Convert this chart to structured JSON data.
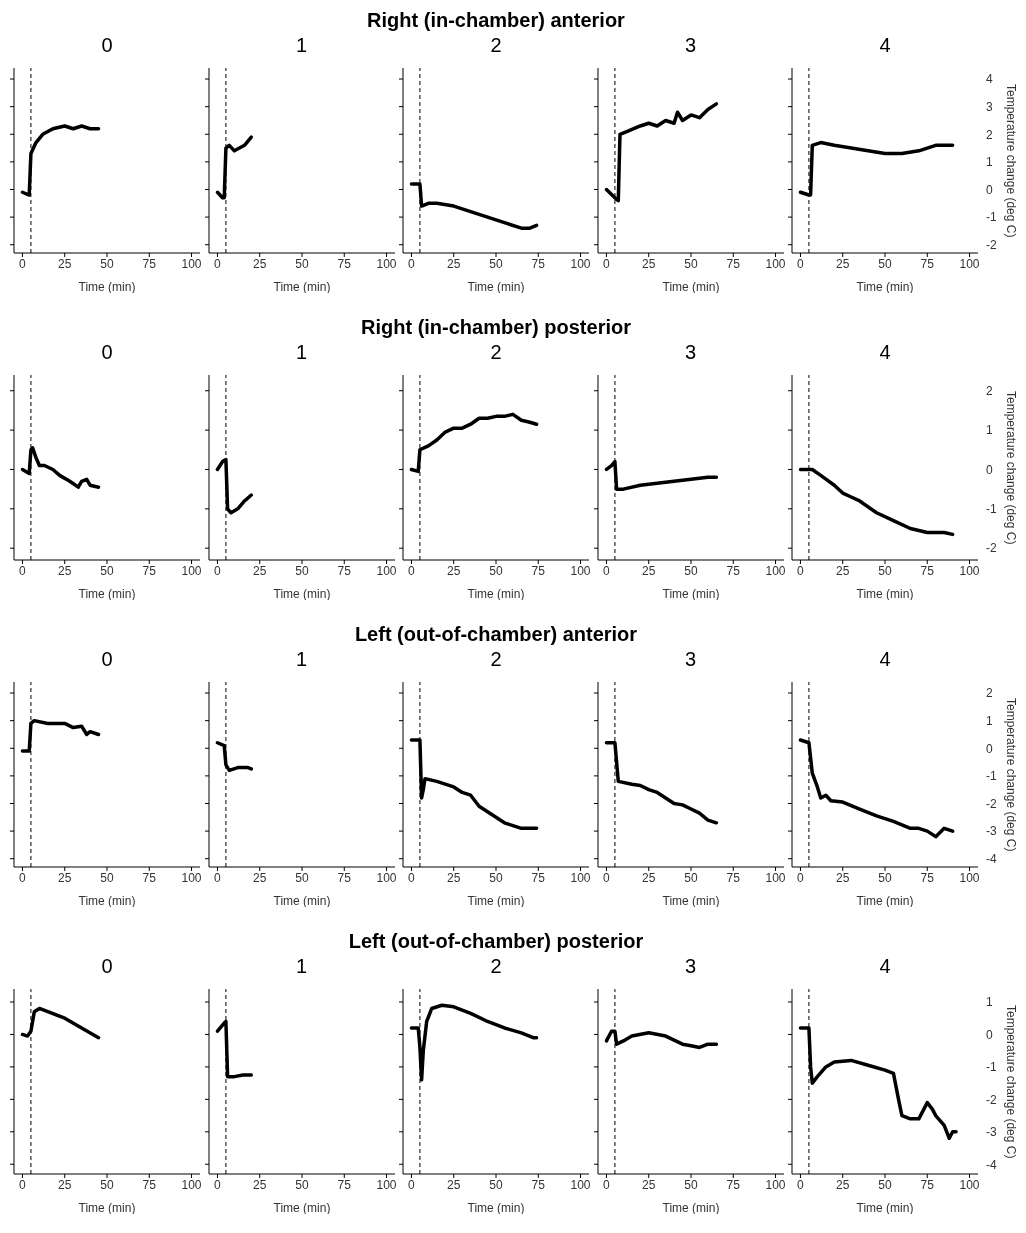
{
  "chart_data": [
    {
      "type": "line",
      "title": "0",
      "xlabel": "Time (min)",
      "xlim": [
        -5,
        105
      ],
      "xticks": [
        0,
        25,
        50,
        75,
        100
      ],
      "ylim": [
        -2.3,
        4.4
      ],
      "yticks": [
        {
          "value": -2,
          "label": null
        },
        {
          "value": -1,
          "label": null
        },
        {
          "value": 0,
          "label": null
        },
        {
          "value": 1,
          "label": null
        },
        {
          "value": 2,
          "label": null
        },
        {
          "value": 3,
          "label": null
        },
        {
          "value": 4,
          "label": null
        }
      ],
      "tick_labels": "x",
      "marker": "none",
      "ref_lines": [
        {
          "axis": "x",
          "value": 5,
          "line_style": "dashed",
          "color": "#000000"
        }
      ],
      "series": [
        {
          "color": "#000000",
          "x": [
            0,
            4,
            5,
            8,
            12,
            18,
            25,
            30,
            35,
            40,
            45
          ],
          "values": [
            -0.1,
            -0.2,
            1.3,
            1.7,
            2.0,
            2.2,
            2.3,
            2.2,
            2.3,
            2.2,
            2.2
          ]
        }
      ]
    },
    {
      "type": "line",
      "title": "1",
      "xlabel": "Time (min)",
      "xlim": [
        -5,
        105
      ],
      "xticks": [
        0,
        25,
        50,
        75,
        100
      ],
      "ylim": [
        -2.3,
        4.4
      ],
      "yticks": [
        {
          "value": -2,
          "label": null
        },
        {
          "value": -1,
          "label": null
        },
        {
          "value": 0,
          "label": null
        },
        {
          "value": 1,
          "label": null
        },
        {
          "value": 2,
          "label": null
        },
        {
          "value": 3,
          "label": null
        },
        {
          "value": 4,
          "label": null
        }
      ],
      "tick_labels": "x",
      "marker": "none",
      "ref_lines": [
        {
          "axis": "x",
          "value": 5,
          "line_style": "dashed",
          "color": "#000000"
        }
      ],
      "series": [
        {
          "color": "#000000",
          "x": [
            0,
            3,
            4,
            5,
            7,
            10,
            13,
            16,
            20
          ],
          "values": [
            -0.1,
            -0.3,
            -0.3,
            1.5,
            1.6,
            1.4,
            1.5,
            1.6,
            1.9
          ]
        }
      ]
    },
    {
      "type": "line",
      "title": "Right (in-chamber) anterior",
      "subtitle": "2",
      "xlabel": "Time (min)",
      "xlim": [
        -5,
        105
      ],
      "xticks": [
        0,
        25,
        50,
        75,
        100
      ],
      "ylim": [
        -2.3,
        4.4
      ],
      "yticks": [
        {
          "value": -2,
          "label": null
        },
        {
          "value": -1,
          "label": null
        },
        {
          "value": 0,
          "label": null
        },
        {
          "value": 1,
          "label": null
        },
        {
          "value": 2,
          "label": null
        },
        {
          "value": 3,
          "label": null
        },
        {
          "value": 4,
          "label": null
        }
      ],
      "tick_labels": "x",
      "marker": "none",
      "ref_lines": [
        {
          "axis": "x",
          "value": 5,
          "line_style": "dashed",
          "color": "#000000"
        }
      ],
      "series": [
        {
          "color": "#000000",
          "x": [
            0,
            5,
            6,
            10,
            15,
            25,
            35,
            45,
            55,
            65,
            70,
            74
          ],
          "values": [
            0.2,
            0.2,
            -0.6,
            -0.5,
            -0.5,
            -0.6,
            -0.8,
            -1.0,
            -1.2,
            -1.4,
            -1.4,
            -1.3
          ]
        }
      ]
    },
    {
      "type": "line",
      "title": "3",
      "xlabel": "Time (min)",
      "xlim": [
        -5,
        105
      ],
      "xticks": [
        0,
        25,
        50,
        75,
        100
      ],
      "ylim": [
        -2.3,
        4.4
      ],
      "yticks": [
        {
          "value": -2,
          "label": null
        },
        {
          "value": -1,
          "label": null
        },
        {
          "value": 0,
          "label": null
        },
        {
          "value": 1,
          "label": null
        },
        {
          "value": 2,
          "label": null
        },
        {
          "value": 3,
          "label": null
        },
        {
          "value": 4,
          "label": null
        }
      ],
      "tick_labels": "x",
      "marker": "none",
      "ref_lines": [
        {
          "axis": "x",
          "value": 5,
          "line_style": "dashed",
          "color": "#000000"
        }
      ],
      "series": [
        {
          "color": "#000000",
          "x": [
            0,
            5,
            7,
            8,
            12,
            20,
            25,
            30,
            35,
            40,
            42,
            45,
            50,
            55,
            60,
            65
          ],
          "values": [
            0,
            -0.3,
            -0.4,
            2.0,
            2.1,
            2.3,
            2.4,
            2.3,
            2.5,
            2.4,
            2.8,
            2.5,
            2.7,
            2.6,
            2.9,
            3.1
          ]
        }
      ]
    },
    {
      "type": "line",
      "title": "4",
      "xlabel": "Time (min)",
      "ylabel": "Temperature change (deg C)",
      "xlim": [
        -5,
        105
      ],
      "xticks": [
        0,
        25,
        50,
        75,
        100
      ],
      "ylim": [
        -2.3,
        4.4
      ],
      "yticks": [
        -2,
        -1,
        0,
        1,
        2,
        3,
        4
      ],
      "marker": "none",
      "ref_lines": [
        {
          "axis": "x",
          "value": 5,
          "line_style": "dashed",
          "color": "#000000"
        }
      ],
      "series": [
        {
          "color": "#000000",
          "x": [
            0,
            5,
            6,
            7,
            12,
            20,
            30,
            40,
            50,
            60,
            70,
            75,
            80,
            90
          ],
          "values": [
            -0.1,
            -0.2,
            -0.2,
            1.6,
            1.7,
            1.6,
            1.5,
            1.4,
            1.3,
            1.3,
            1.4,
            1.5,
            1.6,
            1.6
          ]
        }
      ]
    },
    {
      "type": "line",
      "title": "0",
      "xlabel": "Time (min)",
      "xlim": [
        -5,
        105
      ],
      "xticks": [
        0,
        25,
        50,
        75,
        100
      ],
      "ylim": [
        -2.3,
        2.4
      ],
      "yticks": [
        {
          "value": -2,
          "label": null
        },
        {
          "value": -1,
          "label": null
        },
        {
          "value": 0,
          "label": null
        },
        {
          "value": 1,
          "label": null
        },
        {
          "value": 2,
          "label": null
        }
      ],
      "tick_labels": "x",
      "marker": "none",
      "ref_lines": [
        {
          "axis": "x",
          "value": 5,
          "line_style": "dashed",
          "color": "#000000"
        }
      ],
      "series": [
        {
          "color": "#000000",
          "x": [
            0,
            4,
            5,
            6,
            8,
            10,
            13,
            18,
            22,
            28,
            33,
            35,
            38,
            40,
            45
          ],
          "values": [
            0,
            -0.1,
            0.5,
            0.55,
            0.3,
            0.1,
            0.1,
            0,
            -0.15,
            -0.3,
            -0.45,
            -0.3,
            -0.25,
            -0.4,
            -0.45
          ]
        }
      ]
    },
    {
      "type": "line",
      "title": "1",
      "xlabel": "Time (min)",
      "xlim": [
        -5,
        105
      ],
      "xticks": [
        0,
        25,
        50,
        75,
        100
      ],
      "ylim": [
        -2.3,
        2.4
      ],
      "yticks": [
        {
          "value": -2,
          "label": null
        },
        {
          "value": -1,
          "label": null
        },
        {
          "value": 0,
          "label": null
        },
        {
          "value": 1,
          "label": null
        },
        {
          "value": 2,
          "label": null
        }
      ],
      "tick_labels": "x",
      "marker": "none",
      "ref_lines": [
        {
          "axis": "x",
          "value": 5,
          "line_style": "dashed",
          "color": "#000000"
        }
      ],
      "series": [
        {
          "color": "#000000",
          "x": [
            0,
            3,
            5,
            6,
            8,
            12,
            16,
            20
          ],
          "values": [
            0,
            0.2,
            0.25,
            -1.0,
            -1.1,
            -1.0,
            -0.8,
            -0.65
          ]
        }
      ]
    },
    {
      "type": "line",
      "title": "Right (in-chamber) posterior",
      "subtitle": "2",
      "xlabel": "Time (min)",
      "xlim": [
        -5,
        105
      ],
      "xticks": [
        0,
        25,
        50,
        75,
        100
      ],
      "ylim": [
        -2.3,
        2.4
      ],
      "yticks": [
        {
          "value": -2,
          "label": null
        },
        {
          "value": -1,
          "label": null
        },
        {
          "value": 0,
          "label": null
        },
        {
          "value": 1,
          "label": null
        },
        {
          "value": 2,
          "label": null
        }
      ],
      "tick_labels": "x",
      "marker": "none",
      "ref_lines": [
        {
          "axis": "x",
          "value": 5,
          "line_style": "dashed",
          "color": "#000000"
        }
      ],
      "series": [
        {
          "color": "#000000",
          "x": [
            0,
            4,
            5,
            10,
            15,
            20,
            25,
            30,
            35,
            40,
            45,
            50,
            55,
            60,
            65,
            70,
            74
          ],
          "values": [
            0,
            -0.05,
            0.5,
            0.6,
            0.75,
            0.95,
            1.05,
            1.05,
            1.15,
            1.3,
            1.3,
            1.35,
            1.35,
            1.4,
            1.25,
            1.2,
            1.15
          ]
        }
      ]
    },
    {
      "type": "line",
      "title": "3",
      "xlabel": "Time (min)",
      "xlim": [
        -5,
        105
      ],
      "xticks": [
        0,
        25,
        50,
        75,
        100
      ],
      "ylim": [
        -2.3,
        2.4
      ],
      "yticks": [
        {
          "value": -2,
          "label": null
        },
        {
          "value": -1,
          "label": null
        },
        {
          "value": 0,
          "label": null
        },
        {
          "value": 1,
          "label": null
        },
        {
          "value": 2,
          "label": null
        }
      ],
      "tick_labels": "x",
      "marker": "none",
      "ref_lines": [
        {
          "axis": "x",
          "value": 5,
          "line_style": "dashed",
          "color": "#000000"
        }
      ],
      "series": [
        {
          "color": "#000000",
          "x": [
            0,
            3,
            5,
            6,
            10,
            20,
            30,
            40,
            50,
            60,
            65
          ],
          "values": [
            0,
            0.1,
            0.2,
            -0.5,
            -0.5,
            -0.4,
            -0.35,
            -0.3,
            -0.25,
            -0.2,
            -0.2
          ]
        }
      ]
    },
    {
      "type": "line",
      "title": "4",
      "xlabel": "Time (min)",
      "ylabel": "Temperature change (deg C)",
      "xlim": [
        -5,
        105
      ],
      "xticks": [
        0,
        25,
        50,
        75,
        100
      ],
      "ylim": [
        -2.3,
        2.4
      ],
      "yticks": [
        -2,
        -1,
        0,
        1,
        2
      ],
      "marker": "none",
      "ref_lines": [
        {
          "axis": "x",
          "value": 5,
          "line_style": "dashed",
          "color": "#000000"
        }
      ],
      "series": [
        {
          "color": "#000000",
          "x": [
            0,
            3,
            7,
            12,
            20,
            25,
            30,
            35,
            45,
            55,
            65,
            75,
            85,
            90
          ],
          "values": [
            0,
            0,
            0,
            -0.15,
            -0.4,
            -0.6,
            -0.7,
            -0.8,
            -1.1,
            -1.3,
            -1.5,
            -1.6,
            -1.6,
            -1.65
          ]
        }
      ]
    },
    {
      "type": "line",
      "title": "0",
      "xlabel": "Time (min)",
      "xlim": [
        -5,
        105
      ],
      "xticks": [
        0,
        25,
        50,
        75,
        100
      ],
      "ylim": [
        -4.3,
        2.4
      ],
      "yticks": [
        {
          "value": -4,
          "label": null
        },
        {
          "value": -3,
          "label": null
        },
        {
          "value": -2,
          "label": null
        },
        {
          "value": -1,
          "label": null
        },
        {
          "value": 0,
          "label": null
        },
        {
          "value": 1,
          "label": null
        },
        {
          "value": 2,
          "label": null
        }
      ],
      "tick_labels": "x",
      "marker": "none",
      "ref_lines": [
        {
          "axis": "x",
          "value": 5,
          "line_style": "dashed",
          "color": "#000000"
        }
      ],
      "series": [
        {
          "color": "#000000",
          "x": [
            0,
            4,
            5,
            7,
            15,
            25,
            30,
            35,
            38,
            40,
            45
          ],
          "values": [
            -0.1,
            -0.1,
            0.9,
            1.0,
            0.9,
            0.9,
            0.75,
            0.8,
            0.5,
            0.6,
            0.5
          ]
        }
      ]
    },
    {
      "type": "line",
      "title": "1",
      "xlabel": "Time (min)",
      "xlim": [
        -5,
        105
      ],
      "xticks": [
        0,
        25,
        50,
        75,
        100
      ],
      "ylim": [
        -4.3,
        2.4
      ],
      "yticks": [
        {
          "value": -4,
          "label": null
        },
        {
          "value": -3,
          "label": null
        },
        {
          "value": -2,
          "label": null
        },
        {
          "value": -1,
          "label": null
        },
        {
          "value": 0,
          "label": null
        },
        {
          "value": 1,
          "label": null
        },
        {
          "value": 2,
          "label": null
        }
      ],
      "tick_labels": "x",
      "marker": "none",
      "ref_lines": [
        {
          "axis": "x",
          "value": 5,
          "line_style": "dashed",
          "color": "#000000"
        }
      ],
      "series": [
        {
          "color": "#000000",
          "x": [
            0,
            4,
            5,
            7,
            12,
            18,
            20
          ],
          "values": [
            0.2,
            0.1,
            -0.6,
            -0.8,
            -0.7,
            -0.7,
            -0.75
          ]
        }
      ]
    },
    {
      "type": "line",
      "title": "Left (out-of-chamber) anterior",
      "subtitle": "2",
      "xlabel": "Time (min)",
      "xlim": [
        -5,
        105
      ],
      "xticks": [
        0,
        25,
        50,
        75,
        100
      ],
      "ylim": [
        -4.3,
        2.4
      ],
      "yticks": [
        {
          "value": -4,
          "label": null
        },
        {
          "value": -3,
          "label": null
        },
        {
          "value": -2,
          "label": null
        },
        {
          "value": -1,
          "label": null
        },
        {
          "value": 0,
          "label": null
        },
        {
          "value": 1,
          "label": null
        },
        {
          "value": 2,
          "label": null
        }
      ],
      "tick_labels": "x",
      "marker": "none",
      "ref_lines": [
        {
          "axis": "x",
          "value": 5,
          "line_style": "dashed",
          "color": "#000000"
        }
      ],
      "series": [
        {
          "color": "#000000",
          "x": [
            0,
            5,
            6,
            7,
            8,
            15,
            25,
            30,
            35,
            40,
            50,
            55,
            60,
            65,
            74
          ],
          "values": [
            0.3,
            0.3,
            -1.8,
            -1.5,
            -1.1,
            -1.2,
            -1.4,
            -1.6,
            -1.7,
            -2.1,
            -2.5,
            -2.7,
            -2.8,
            -2.9,
            -2.9
          ]
        }
      ]
    },
    {
      "type": "line",
      "title": "3",
      "xlabel": "Time (min)",
      "xlim": [
        -5,
        105
      ],
      "xticks": [
        0,
        25,
        50,
        75,
        100
      ],
      "ylim": [
        -4.3,
        2.4
      ],
      "yticks": [
        {
          "value": -4,
          "label": null
        },
        {
          "value": -3,
          "label": null
        },
        {
          "value": -2,
          "label": null
        },
        {
          "value": -1,
          "label": null
        },
        {
          "value": 0,
          "label": null
        },
        {
          "value": 1,
          "label": null
        },
        {
          "value": 2,
          "label": null
        }
      ],
      "tick_labels": "x",
      "marker": "none",
      "ref_lines": [
        {
          "axis": "x",
          "value": 5,
          "line_style": "dashed",
          "color": "#000000"
        }
      ],
      "series": [
        {
          "color": "#000000",
          "x": [
            0,
            5,
            7,
            15,
            20,
            25,
            30,
            35,
            40,
            45,
            50,
            55,
            60,
            65
          ],
          "values": [
            0.2,
            0.2,
            -1.2,
            -1.3,
            -1.35,
            -1.5,
            -1.6,
            -1.8,
            -2.0,
            -2.05,
            -2.2,
            -2.35,
            -2.6,
            -2.7
          ]
        }
      ]
    },
    {
      "type": "line",
      "title": "4",
      "xlabel": "Time (min)",
      "ylabel": "Temperature change (deg C)",
      "xlim": [
        -5,
        105
      ],
      "xticks": [
        0,
        25,
        50,
        75,
        100
      ],
      "ylim": [
        -4.3,
        2.4
      ],
      "yticks": [
        -4,
        -3,
        -2,
        -1,
        0,
        1,
        2
      ],
      "marker": "none",
      "ref_lines": [
        {
          "axis": "x",
          "value": 5,
          "line_style": "dashed",
          "color": "#000000"
        }
      ],
      "series": [
        {
          "color": "#000000",
          "x": [
            0,
            5,
            7,
            10,
            12,
            15,
            18,
            25,
            35,
            45,
            55,
            65,
            70,
            75,
            80,
            85,
            90
          ],
          "values": [
            0.3,
            0.2,
            -0.9,
            -1.4,
            -1.8,
            -1.7,
            -1.9,
            -1.95,
            -2.2,
            -2.45,
            -2.65,
            -2.9,
            -2.9,
            -3.0,
            -3.2,
            -2.9,
            -3.0
          ]
        }
      ]
    },
    {
      "type": "line",
      "title": "0",
      "xlabel": "Time (min)",
      "xlim": [
        -5,
        105
      ],
      "xticks": [
        0,
        25,
        50,
        75,
        100
      ],
      "ylim": [
        -4.3,
        1.4
      ],
      "yticks": [
        {
          "value": -4,
          "label": null
        },
        {
          "value": -3,
          "label": null
        },
        {
          "value": -2,
          "label": null
        },
        {
          "value": -1,
          "label": null
        },
        {
          "value": 0,
          "label": null
        },
        {
          "value": 1,
          "label": null
        }
      ],
      "tick_labels": "x",
      "marker": "none",
      "ref_lines": [
        {
          "axis": "x",
          "value": 5,
          "line_style": "dashed",
          "color": "#000000"
        }
      ],
      "series": [
        {
          "color": "#000000",
          "x": [
            0,
            3,
            5,
            7,
            10,
            15,
            25,
            35,
            45
          ],
          "values": [
            0,
            -0.05,
            0.1,
            0.7,
            0.8,
            0.7,
            0.5,
            0.2,
            -0.1
          ]
        }
      ]
    },
    {
      "type": "line",
      "title": "1",
      "xlabel": "Time (min)",
      "xlim": [
        -5,
        105
      ],
      "xticks": [
        0,
        25,
        50,
        75,
        100
      ],
      "ylim": [
        -4.3,
        1.4
      ],
      "yticks": [
        {
          "value": -4,
          "label": null
        },
        {
          "value": -3,
          "label": null
        },
        {
          "value": -2,
          "label": null
        },
        {
          "value": -1,
          "label": null
        },
        {
          "value": 0,
          "label": null
        },
        {
          "value": 1,
          "label": null
        }
      ],
      "tick_labels": "x",
      "marker": "none",
      "ref_lines": [
        {
          "axis": "x",
          "value": 5,
          "line_style": "dashed",
          "color": "#000000"
        }
      ],
      "series": [
        {
          "color": "#000000",
          "x": [
            0,
            4,
            5,
            6,
            10,
            15,
            20
          ],
          "values": [
            0.1,
            0.35,
            0.4,
            -1.3,
            -1.3,
            -1.25,
            -1.25
          ]
        }
      ]
    },
    {
      "type": "line",
      "title": "Left (out-of-chamber) posterior",
      "subtitle": "2",
      "xlabel": "Time (min)",
      "xlim": [
        -5,
        105
      ],
      "xticks": [
        0,
        25,
        50,
        75,
        100
      ],
      "ylim": [
        -4.3,
        1.4
      ],
      "yticks": [
        {
          "value": -4,
          "label": null
        },
        {
          "value": -3,
          "label": null
        },
        {
          "value": -2,
          "label": null
        },
        {
          "value": -1,
          "label": null
        },
        {
          "value": 0,
          "label": null
        },
        {
          "value": 1,
          "label": null
        }
      ],
      "tick_labels": "x",
      "marker": "none",
      "ref_lines": [
        {
          "axis": "x",
          "value": 5,
          "line_style": "dashed",
          "color": "#000000"
        }
      ],
      "series": [
        {
          "color": "#000000",
          "x": [
            0,
            4,
            5,
            6,
            7,
            9,
            12,
            18,
            25,
            35,
            45,
            55,
            65,
            72,
            74
          ],
          "values": [
            0.2,
            0.2,
            -0.4,
            -1.4,
            -0.5,
            0.4,
            0.8,
            0.9,
            0.85,
            0.65,
            0.4,
            0.2,
            0.05,
            -0.1,
            -0.1
          ]
        }
      ]
    },
    {
      "type": "line",
      "title": "3",
      "xlabel": "Time (min)",
      "xlim": [
        -5,
        105
      ],
      "xticks": [
        0,
        25,
        50,
        75,
        100
      ],
      "ylim": [
        -4.3,
        1.4
      ],
      "yticks": [
        {
          "value": -4,
          "label": null
        },
        {
          "value": -3,
          "label": null
        },
        {
          "value": -2,
          "label": null
        },
        {
          "value": -1,
          "label": null
        },
        {
          "value": 0,
          "label": null
        },
        {
          "value": 1,
          "label": null
        }
      ],
      "tick_labels": "x",
      "marker": "none",
      "ref_lines": [
        {
          "axis": "x",
          "value": 5,
          "line_style": "dashed",
          "color": "#000000"
        }
      ],
      "series": [
        {
          "color": "#000000",
          "x": [
            0,
            3,
            5,
            6,
            10,
            15,
            25,
            35,
            45,
            50,
            55,
            60,
            65
          ],
          "values": [
            -0.2,
            0.1,
            0.1,
            -0.3,
            -0.2,
            -0.05,
            0.05,
            -0.05,
            -0.3,
            -0.35,
            -0.4,
            -0.3,
            -0.3
          ]
        }
      ]
    },
    {
      "type": "line",
      "title": "4",
      "xlabel": "Time (min)",
      "ylabel": "Temperature change (deg C)",
      "xlim": [
        -5,
        105
      ],
      "xticks": [
        0,
        25,
        50,
        75,
        100
      ],
      "ylim": [
        -4.3,
        1.4
      ],
      "yticks": [
        -4,
        -3,
        -2,
        -1,
        0,
        1
      ],
      "marker": "none",
      "ref_lines": [
        {
          "axis": "x",
          "value": 5,
          "line_style": "dashed",
          "color": "#000000"
        }
      ],
      "series": [
        {
          "color": "#000000",
          "x": [
            0,
            5,
            6,
            7,
            10,
            15,
            20,
            30,
            40,
            50,
            55,
            58,
            60,
            65,
            70,
            73,
            75,
            78,
            80,
            85,
            88,
            90,
            92
          ],
          "values": [
            0.2,
            0.2,
            -1.0,
            -1.5,
            -1.3,
            -1.0,
            -0.85,
            -0.8,
            -0.95,
            -1.1,
            -1.2,
            -2.0,
            -2.5,
            -2.6,
            -2.6,
            -2.3,
            -2.1,
            -2.3,
            -2.5,
            -2.8,
            -3.2,
            -3.0,
            -3.0
          ]
        }
      ]
    }
  ]
}
